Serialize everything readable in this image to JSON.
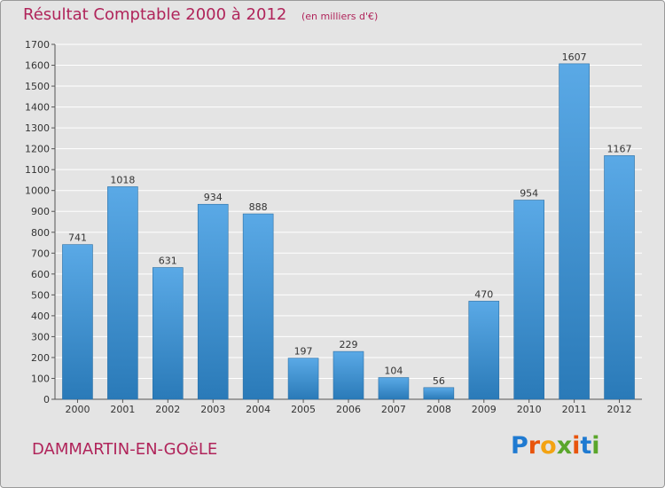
{
  "header": {
    "title": "Résultat Comptable 2000 à 2012",
    "subtitle": "(en milliers d'€)"
  },
  "footer": {
    "commune": "DAMMARTIN-EN-GOëLE",
    "logo_letters": [
      "P",
      "r",
      "o",
      "x",
      "i",
      "t",
      "i"
    ],
    "logo_colors": [
      "#1f7ad1",
      "#e8540c",
      "#f3a312",
      "#5aa62b",
      "#e8540c",
      "#1f7ad1",
      "#5aa62b"
    ]
  },
  "colors": {
    "bar_light": "#5aa9e6",
    "bar_dark": "#2a7ab8",
    "grid": "#ffffff",
    "axis": "#555555",
    "title": "#b0245a"
  },
  "chart_data": {
    "type": "bar",
    "categories": [
      "2000",
      "2001",
      "2002",
      "2003",
      "2004",
      "2005",
      "2006",
      "2007",
      "2008",
      "2009",
      "2010",
      "2011",
      "2012"
    ],
    "values": [
      741,
      1018,
      631,
      934,
      888,
      197,
      229,
      104,
      56,
      470,
      954,
      1607,
      1167
    ],
    "ylim": [
      0,
      1700
    ],
    "yticks": [
      0,
      100,
      200,
      300,
      400,
      500,
      600,
      700,
      800,
      900,
      1000,
      1100,
      1200,
      1300,
      1400,
      1500,
      1600,
      1700
    ],
    "grid": true,
    "xlabel": "",
    "ylabel": ""
  }
}
